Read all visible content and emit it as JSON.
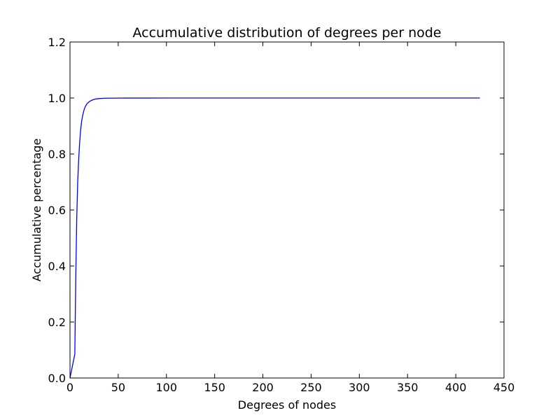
{
  "chart_data": {
    "type": "line",
    "title": "Accumulative distribution of degrees per node",
    "xlabel": "Degrees of nodes",
    "ylabel": "Accumulative percentage",
    "xlim": [
      0,
      450
    ],
    "ylim": [
      0,
      1.2
    ],
    "xticks": [
      0,
      50,
      100,
      150,
      200,
      250,
      300,
      350,
      400,
      450
    ],
    "yticks": [
      0.0,
      0.2,
      0.4,
      0.6,
      0.8,
      1.0,
      1.2
    ],
    "xtick_labels": [
      "0",
      "50",
      "100",
      "150",
      "200",
      "250",
      "300",
      "350",
      "400",
      "450"
    ],
    "ytick_labels": [
      "0.0",
      "0.2",
      "0.4",
      "0.6",
      "0.8",
      "1.0",
      "1.2"
    ],
    "grid": false,
    "legend": "none",
    "series": [
      {
        "color": "#0000ff",
        "x": [
          0,
          5,
          6,
          7,
          8,
          9,
          10,
          11,
          12,
          13,
          14,
          15,
          16,
          17,
          18,
          20,
          22,
          24,
          26,
          28,
          30,
          35,
          40,
          50,
          60,
          80,
          100,
          150,
          200,
          250,
          300,
          350,
          400,
          425
        ],
        "y": [
          0.0,
          0.085,
          0.36,
          0.57,
          0.7,
          0.78,
          0.84,
          0.885,
          0.915,
          0.935,
          0.95,
          0.962,
          0.97,
          0.976,
          0.981,
          0.987,
          0.991,
          0.994,
          0.996,
          0.997,
          0.998,
          0.999,
          0.9994,
          0.9997,
          0.9998,
          0.9999,
          1.0,
          1.0,
          1.0,
          1.0,
          1.0,
          1.0,
          1.0,
          1.0
        ]
      }
    ]
  }
}
